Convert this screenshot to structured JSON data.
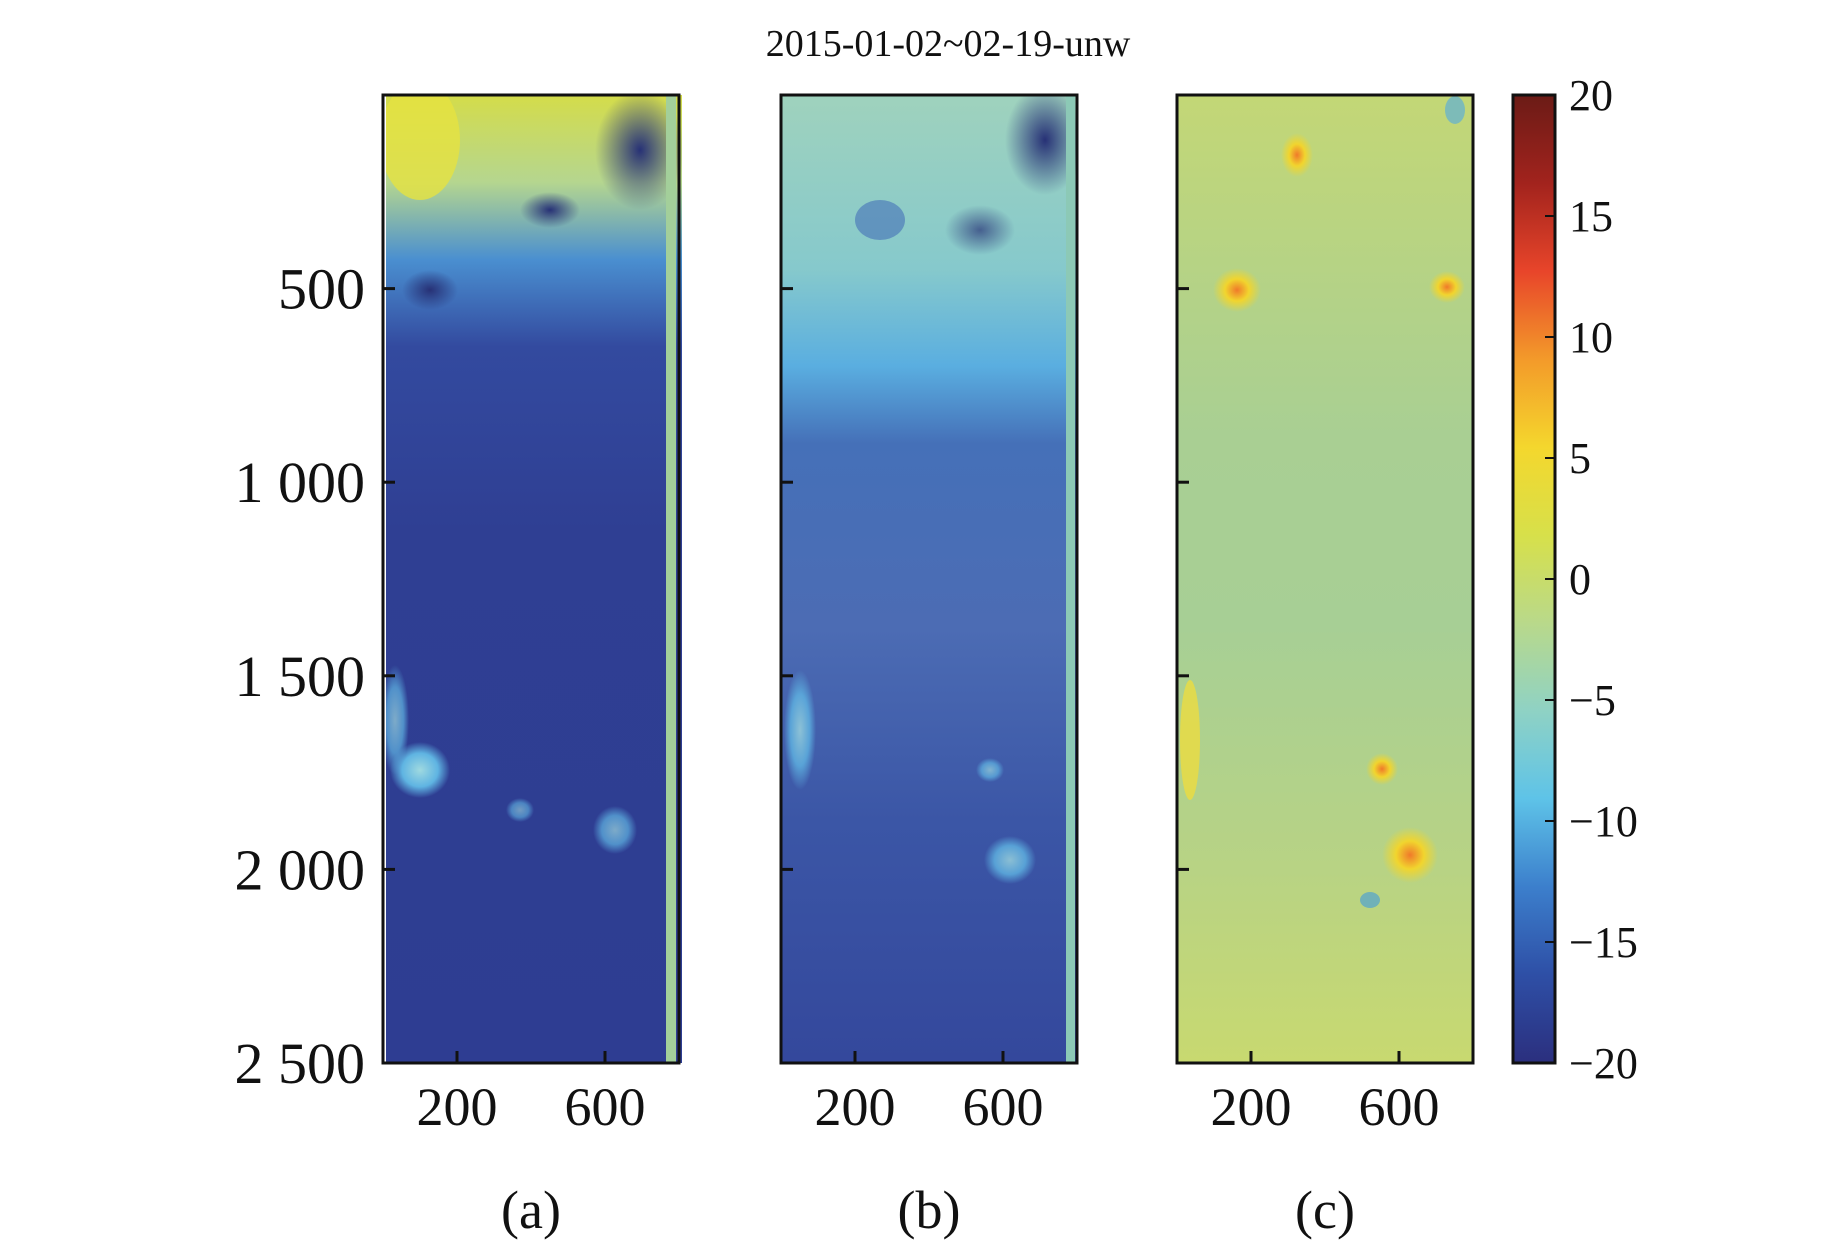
{
  "chart_data": {
    "type": "heatmap",
    "title": "2015-01-02~02-19-unw",
    "xlabel": "",
    "ylabel": "",
    "xlim": [
      0,
      800
    ],
    "ylim": [
      2500,
      0
    ],
    "x_ticks": [
      "200",
      "600"
    ],
    "x_tick_values": [
      200,
      600
    ],
    "y_ticks": [
      "500",
      "1 000",
      "1 500",
      "2 000",
      "2 500"
    ],
    "y_tick_values": [
      500,
      1000,
      1500,
      2000,
      2500
    ],
    "colorbar": {
      "min": -20,
      "max": 20,
      "ticks": [
        "20",
        "15",
        "10",
        "5",
        "0",
        "−5",
        "−10",
        "−15",
        "−20"
      ],
      "tick_values": [
        20,
        15,
        10,
        5,
        0,
        -5,
        -10,
        -15,
        -20
      ],
      "colormap": [
        "#2b2f7e",
        "#2e4fa6",
        "#3c7fcc",
        "#5ec3e8",
        "#8fd2c4",
        "#b9d98a",
        "#d7e04a",
        "#f4d72d",
        "#f39a2a",
        "#e8452a",
        "#a2231d",
        "#6b1b16"
      ]
    },
    "panels": [
      {
        "label": "(a)",
        "dominant": "low",
        "colors": {
          "base": "#2e3f95",
          "upper": "#3c69b8",
          "top": "#d9e04a"
        }
      },
      {
        "label": "(b)",
        "dominant": "low",
        "colors": {
          "base": "#3552a6",
          "upper": "#4f8ac8",
          "top": "#9dd2b8"
        }
      },
      {
        "label": "(c)",
        "dominant": "neutral",
        "colors": {
          "base": "#b3d08a",
          "upper": "#c9d86b",
          "top": "#e0dd50"
        }
      }
    ]
  }
}
